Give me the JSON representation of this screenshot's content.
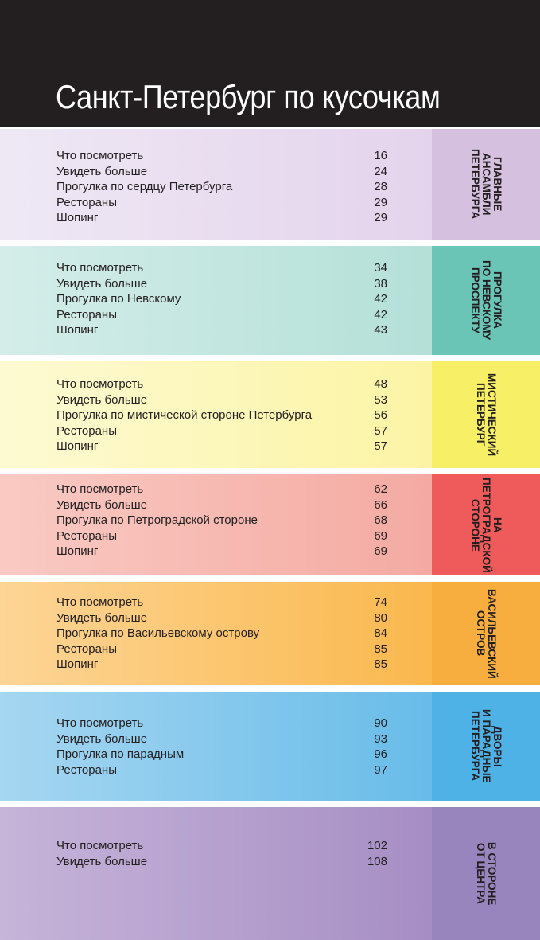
{
  "title": "Санкт-Петербург по кусочкам",
  "sections": [
    {
      "tab_label": "Главные\nансамбли\nПетербурга",
      "colors": {
        "body_from": "#eee8f4",
        "body_to": "#e4d3ec",
        "tab": "#d6c0e0"
      },
      "entries": [
        {
          "label": "Что посмотреть",
          "page": "16"
        },
        {
          "label": "Увидеть больше",
          "page": "24"
        },
        {
          "label": "Прогулка по сердцу Петербурга",
          "page": "28"
        },
        {
          "label": "Рестораны",
          "page": "29"
        },
        {
          "label": "Шопинг",
          "page": "29"
        }
      ]
    },
    {
      "tab_label": "Прогулка\nпо Невскому\nпроспекту",
      "colors": {
        "body_from": "#d4ede9",
        "body_to": "#b4e0d8",
        "tab": "#6ac5b7"
      },
      "entries": [
        {
          "label": "Что посмотреть",
          "page": "34"
        },
        {
          "label": "Увидеть больше",
          "page": "38"
        },
        {
          "label": "Прогулка по Невскому",
          "page": "42"
        },
        {
          "label": "Рестораны",
          "page": "42"
        },
        {
          "label": "Шопинг",
          "page": "43"
        }
      ]
    },
    {
      "tab_label": "Мистический\nПетербург",
      "colors": {
        "body_from": "#fdfad3",
        "body_to": "#fcf4a4",
        "tab": "#f7ef65"
      },
      "entries": [
        {
          "label": "Что посмотреть",
          "page": "48"
        },
        {
          "label": "Увидеть больше",
          "page": "53"
        },
        {
          "label": "Прогулка по мистической стороне Петербурга",
          "page": "56"
        },
        {
          "label": "Рестораны",
          "page": "57"
        },
        {
          "label": "Шопинг",
          "page": "57"
        }
      ]
    },
    {
      "tab_label": "На\nПетроградской\nстороне",
      "colors": {
        "body_from": "#f9cac3",
        "body_to": "#f4aaa2",
        "tab": "#ef5a5a"
      },
      "entries": [
        {
          "label": "Что посмотреть",
          "page": "62"
        },
        {
          "label": "Увидеть больше",
          "page": "66"
        },
        {
          "label": "Прогулка по Петроградской стороне",
          "page": "68"
        },
        {
          "label": "Рестораны",
          "page": "69"
        },
        {
          "label": "Шопинг",
          "page": "69"
        }
      ]
    },
    {
      "tab_label": "Васильевский\nостров",
      "colors": {
        "body_from": "#fdd596",
        "body_to": "#fab84d",
        "tab": "#f8ae3f"
      },
      "entries": [
        {
          "label": "Что посмотреть",
          "page": "74"
        },
        {
          "label": "Увидеть больше",
          "page": "80"
        },
        {
          "label": "Прогулка по Васильевскому острову",
          "page": "84"
        },
        {
          "label": "Рестораны",
          "page": "85"
        },
        {
          "label": "Шопинг",
          "page": "85"
        }
      ]
    },
    {
      "tab_label": "Дворы\nи парадные\nПетербурга",
      "colors": {
        "body_from": "#a6d6f1",
        "body_to": "#68bce9",
        "tab": "#4fb2e6"
      },
      "entries": [
        {
          "label": "Что посмотреть",
          "page": "90"
        },
        {
          "label": "Увидеть больше",
          "page": "93"
        },
        {
          "label": "Прогулка по парадным",
          "page": "96"
        },
        {
          "label": "Рестораны",
          "page": "97"
        }
      ]
    },
    {
      "tab_label": "В стороне\nот центра",
      "colors": {
        "body_from": "#c6b4d9",
        "body_to": "#a68ec4",
        "tab": "#9985bd"
      },
      "entries": [
        {
          "label": "Что посмотреть",
          "page": "102"
        },
        {
          "label": "Увидеть больше",
          "page": "108"
        }
      ]
    }
  ]
}
